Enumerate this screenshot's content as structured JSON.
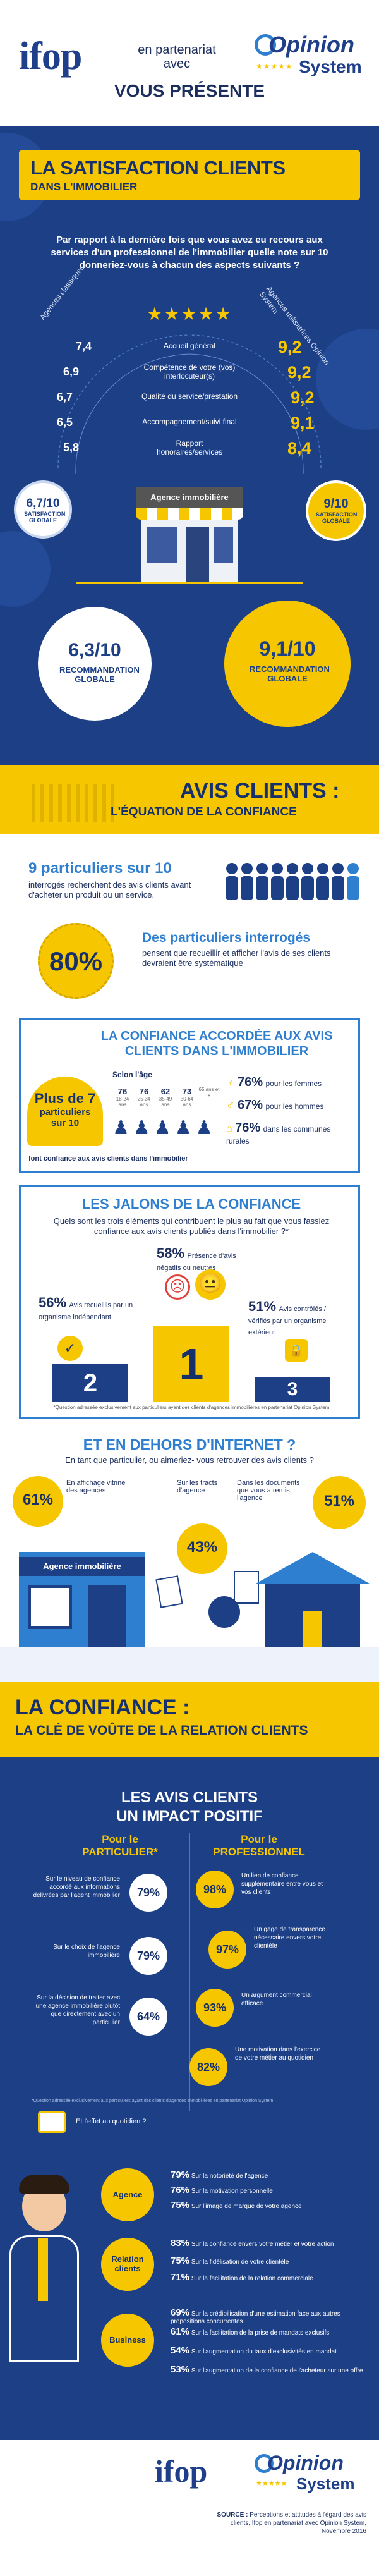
{
  "header": {
    "ifop": "ifop",
    "partner_line1": "en partenariat",
    "partner_line2": "avec",
    "presents": "VOUS PRÉSENTE",
    "opinion": "Opinion",
    "system": "System"
  },
  "section1": {
    "title": "LA SATISFACTION CLIENTS",
    "subtitle": "DANS L'IMMOBILIER",
    "question": "Par rapport à la dernière fois que vous avez eu recours aux services d'un professionnel de l'immobilier quelle note sur 10 donneriez-vous à chacun des aspects suivants ?",
    "arc_left": "Agences classiques",
    "arc_right": "Agences utilisatrices Opinion System",
    "rows": [
      {
        "left": "7,4",
        "label": "Accueil général",
        "right": "9,2"
      },
      {
        "left": "6,9",
        "label": "Compétence de votre (vos) interlocuteur(s)",
        "right": "9,2"
      },
      {
        "left": "6,7",
        "label": "Qualité du service/prestation",
        "right": "9,2"
      },
      {
        "left": "6,5",
        "label": "Accompagnement/suivi final",
        "right": "9,1"
      },
      {
        "left": "5,8",
        "label": "Rapport honoraires/services",
        "right": "8,4"
      }
    ],
    "shop_label": "Agence immobilière",
    "left_global": "6,7/10",
    "left_global_label": "SATISFACTION GLOBALE",
    "right_global": "9/10",
    "right_global_label": "SATISFACTION GLOBALE",
    "left_rec": "6,3/10",
    "left_rec_label": "RECOMMANDATION GLOBALE",
    "right_rec": "9,1/10",
    "right_rec_label": "RECOMMANDATION GLOBALE"
  },
  "section2": {
    "title": "AVIS CLIENTS :",
    "subtitle": "L'ÉQUATION DE LA CONFIANCE",
    "stat_head": "9 particuliers sur 10",
    "stat_text": "interrogés recherchent des avis clients avant d'acheter un produit ou un service.",
    "pct80": "80%",
    "pct80_head": "Des particuliers interrogés",
    "pct80_text": "pensent que recueillir et afficher l'avis de ses clients devraient être systématique",
    "trust_title": "LA CONFIANCE ACCORDÉE AUX AVIS CLIENTS DANS L'IMMOBILIER",
    "plus7_a": "Plus de 7",
    "plus7_b": "particuliers",
    "plus7_c": "sur 10",
    "age_title": "Selon l'âge",
    "ages": [
      {
        "pct": "76",
        "label": "18-24 ans"
      },
      {
        "pct": "76",
        "label": "25-34 ans"
      },
      {
        "pct": "62",
        "label": "35-49 ans"
      },
      {
        "pct": "73",
        "label": "50-64 ans"
      },
      {
        "pct": "",
        "label": "65 ans et +"
      }
    ],
    "gender": [
      {
        "pct": "76%",
        "label": "pour les femmes"
      },
      {
        "pct": "67%",
        "label": "pour les hommes"
      },
      {
        "pct": "76%",
        "label": "dans les communes rurales"
      }
    ],
    "trust_foot": "font confiance aux avis clients dans l'immobilier",
    "jalons_title": "LES JALONS DE LA CONFIANCE",
    "jalons_q": "Quels sont les trois éléments qui contribuent le plus au fait que vous fassiez confiance aux avis clients publiés dans l'immobilier ?*",
    "j58": "58%",
    "j58_text": "Présence d'avis négatifs ou neutres",
    "j56": "56%",
    "j56_text": "Avis recueillis par un organisme indépendant",
    "j51": "51%",
    "j51_text": "Avis contrôlés / vérifiés par un organisme extérieur",
    "pod1": "1",
    "pod2": "2",
    "pod3": "3",
    "jalons_foot": "*Question adressée exclusivement aux particuliers ayant des clients d'agences immobilières en partenariat Opinion System",
    "internet_title": "ET EN DEHORS D'INTERNET ?",
    "internet_q": "En tant que particulier, ou aimeriez- vous retrouver des avis clients ?",
    "p61": "61%",
    "p61_text": "En affichage vitrine des agences",
    "p43": "43%",
    "p43_text": "Sur les tracts d'agence",
    "p51": "51%",
    "p51_text": "Dans les documents que vous a remis l'agence",
    "shop2_label": "Agence immobilière"
  },
  "section3": {
    "title": "LA CONFIANCE :",
    "subtitle": "LA CLÉ DE VOÛTE DE LA RELATION CLIENTS",
    "impact_title1": "LES AVIS CLIENTS",
    "impact_title2": "UN IMPACT POSITIF",
    "col_left1": "Pour le",
    "col_left2": "PARTICULIER*",
    "col_right1": "Pour le",
    "col_right2": "PROFESSIONNEL",
    "left_items": [
      {
        "pct": "79%",
        "text": "Sur le niveau de confiance accordé aux informations délivrées par l'agent immobilier"
      },
      {
        "pct": "79%",
        "text": "Sur le choix de l'agence immobilière"
      },
      {
        "pct": "64%",
        "text": "Sur la décision de traiter avec une agence immobilière plutôt que directement avec un particulier"
      }
    ],
    "right_items": [
      {
        "pct": "98%",
        "text": "Un lien de confiance supplémentaire entre vous et vos clients"
      },
      {
        "pct": "97%",
        "text": "Un gage de transparence nécessaire envers votre clientèle"
      },
      {
        "pct": "93%",
        "text": "Un argument commercial efficace"
      },
      {
        "pct": "82%",
        "text": "Une motivation dans l'exercice de votre métier au quotidien"
      }
    ],
    "daily": "Et l'effet au quotidien ?",
    "impact_foot": "*Question adressée exclusivement aux particuliers ayant des clients d'agences immobilières en partenariat Opinion System",
    "cats": [
      {
        "name": "Agence",
        "items": [
          {
            "pct": "79%",
            "text": "Sur la notoriété de l'agence"
          },
          {
            "pct": "76%",
            "text": "Sur la motivation personnelle"
          },
          {
            "pct": "75%",
            "text": "Sur l'image de marque de votre agence"
          }
        ]
      },
      {
        "name": "Relation clients",
        "items": [
          {
            "pct": "83%",
            "text": "Sur la confiance envers votre métier et votre action"
          },
          {
            "pct": "75%",
            "text": "Sur la fidélisation de votre clientèle"
          },
          {
            "pct": "71%",
            "text": "Sur la facilitation de la relation commerciale"
          }
        ]
      },
      {
        "name": "Business",
        "items": [
          {
            "pct": "69%",
            "text": "Sur la crédibilisation d'une estimation face aux autres propositions concurrentes"
          },
          {
            "pct": "61%",
            "text": "Sur la facilitation de la prise de mandats exclusifs"
          },
          {
            "pct": "54%",
            "text": "Sur l'augmentation du taux d'exclusivités en mandat"
          },
          {
            "pct": "53%",
            "text": "Sur l'augmentation de la confiance de l'acheteur sur une offre"
          }
        ]
      }
    ]
  },
  "footer": {
    "ifop": "ifop",
    "opinion": "Opinion",
    "system": "System",
    "source_label": "SOURCE :",
    "source_text": "Perceptions et attitudes à l'égard des avis clients, Ifop en partenariat avec Opinion System, Novembre 2016"
  },
  "colors": {
    "navy": "#1c3f86",
    "yellow": "#f6c700",
    "blue": "#2f7fd0",
    "light": "#eef3fb"
  }
}
